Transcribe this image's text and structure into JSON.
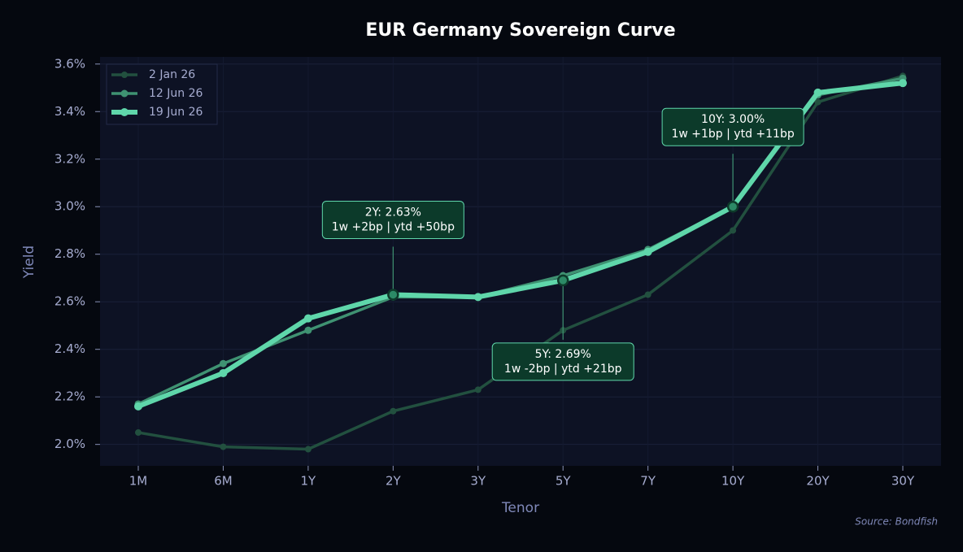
{
  "chart_data": {
    "type": "line",
    "title": "EUR Germany Sovereign Curve",
    "x_label": "Tenor",
    "y_label": "Yield",
    "source": "Source: Bondfish",
    "categories": [
      "1M",
      "6M",
      "1Y",
      "2Y",
      "3Y",
      "5Y",
      "7Y",
      "10Y",
      "20Y",
      "30Y"
    ],
    "series": [
      {
        "name": "2 Jan 26",
        "color": "#22503f",
        "values": [
          2.05,
          1.99,
          1.98,
          2.14,
          2.23,
          2.48,
          2.63,
          2.9,
          3.44,
          3.55
        ]
      },
      {
        "name": "12 Jun 26",
        "color": "#3f9272",
        "values": [
          2.17,
          2.34,
          2.48,
          2.62,
          2.62,
          2.71,
          2.82,
          3.0,
          3.47,
          3.54
        ]
      },
      {
        "name": "19 Jun 26",
        "color": "#5fd6aa",
        "values": [
          2.16,
          2.3,
          2.53,
          2.63,
          2.62,
          2.69,
          2.81,
          3.0,
          3.48,
          3.52
        ]
      }
    ],
    "ylim": [
      1.91,
      3.63
    ],
    "yticks": [
      {
        "value": 2.0,
        "label": "2.0%"
      },
      {
        "value": 2.2,
        "label": "2.2%"
      },
      {
        "value": 2.4,
        "label": "2.4%"
      },
      {
        "value": 2.6,
        "label": "2.6%"
      },
      {
        "value": 2.8,
        "label": "2.8%"
      },
      {
        "value": 3.0,
        "label": "3.0%"
      },
      {
        "value": 3.2,
        "label": "3.2%"
      },
      {
        "value": 3.4,
        "label": "3.4%"
      },
      {
        "value": 3.6,
        "label": "3.6%"
      }
    ],
    "grid": true,
    "legend": "upper left",
    "annotations": [
      {
        "x": "2Y",
        "lines": [
          "2Y: 2.63%",
          "1w +2bp | ytd +50bp"
        ]
      },
      {
        "x": "5Y",
        "lines": [
          "5Y: 2.69%",
          "1w -2bp | ytd +21bp"
        ]
      },
      {
        "x": "10Y",
        "lines": [
          "10Y: 3.00%",
          "1w +1bp | ytd +11bp"
        ]
      }
    ]
  }
}
